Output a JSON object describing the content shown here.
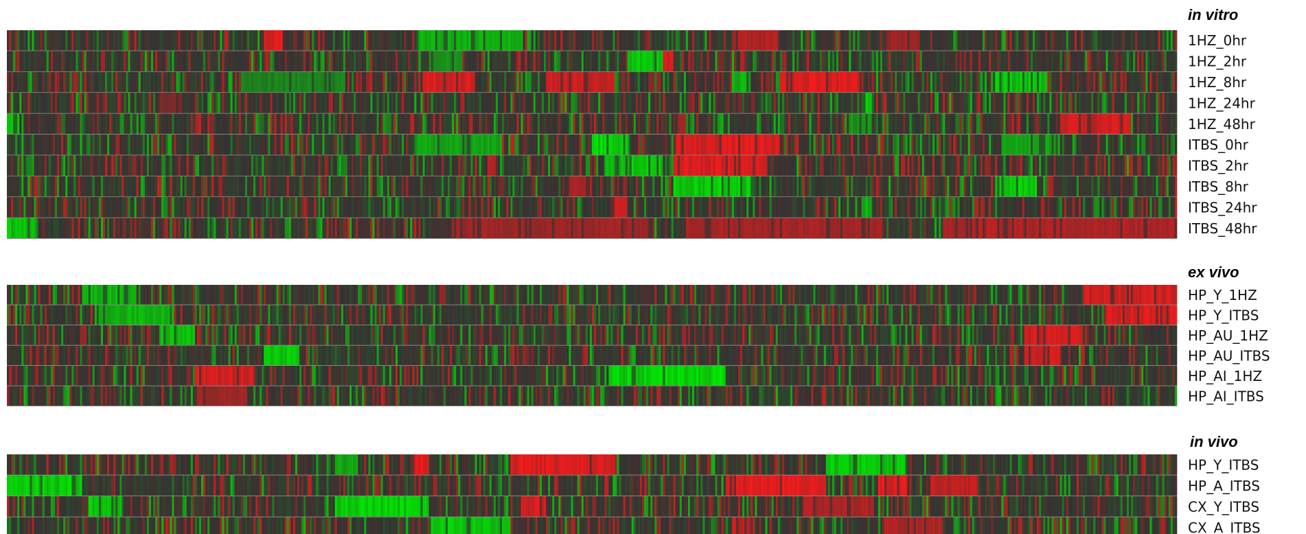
{
  "chart_data": [
    {
      "type": "heatmap",
      "title": "in vitro",
      "rows": [
        "1HZ_0hr",
        "1HZ_2hr",
        "1HZ_8hr",
        "1HZ_24hr",
        "1HZ_48hr",
        "ITBS_0hr",
        "ITBS_2hr",
        "ITBS_8hr",
        "ITBS_24hr",
        "ITBS_48hr"
      ],
      "color_scale": {
        "low": "#00ee00",
        "mid": "#333333",
        "high": "#ff1a1a"
      },
      "value_range": [
        -1,
        1
      ],
      "columns": 560,
      "blocks": [
        {
          "row": 0,
          "from": 0.22,
          "to": 0.235,
          "value": 1
        },
        {
          "row": 0,
          "from": 0.35,
          "to": 0.44,
          "value": -0.8
        },
        {
          "row": 0,
          "from": 0.62,
          "to": 0.66,
          "value": 0.7
        },
        {
          "row": 0,
          "from": 0.75,
          "to": 0.78,
          "value": 0.6
        },
        {
          "row": 1,
          "from": 0.53,
          "to": 0.56,
          "value": -0.9
        },
        {
          "row": 1,
          "from": 0.56,
          "to": 0.57,
          "value": 0.9
        },
        {
          "row": 1,
          "from": 0.36,
          "to": 0.39,
          "value": -0.6
        },
        {
          "row": 2,
          "from": 0.355,
          "to": 0.4,
          "value": 0.95
        },
        {
          "row": 2,
          "from": 0.46,
          "to": 0.52,
          "value": 0.85
        },
        {
          "row": 2,
          "from": 0.62,
          "to": 0.635,
          "value": -0.8
        },
        {
          "row": 2,
          "from": 0.66,
          "to": 0.73,
          "value": 0.95
        },
        {
          "row": 2,
          "from": 0.845,
          "to": 0.89,
          "value": -0.9
        },
        {
          "row": 2,
          "from": 0.2,
          "to": 0.29,
          "value": -0.5
        },
        {
          "row": 3,
          "from": 0.73,
          "to": 0.74,
          "value": -1
        },
        {
          "row": 3,
          "from": 0.13,
          "to": 0.15,
          "value": 0.4
        },
        {
          "row": 4,
          "from": 0.0,
          "to": 0.01,
          "value": -1
        },
        {
          "row": 4,
          "from": 0.9,
          "to": 0.96,
          "value": 0.9
        },
        {
          "row": 4,
          "from": 0.72,
          "to": 0.74,
          "value": -0.6
        },
        {
          "row": 5,
          "from": 0.5,
          "to": 0.53,
          "value": -1
        },
        {
          "row": 5,
          "from": 0.57,
          "to": 0.66,
          "value": 0.95
        },
        {
          "row": 5,
          "from": 0.35,
          "to": 0.42,
          "value": -0.7
        },
        {
          "row": 5,
          "from": 0.85,
          "to": 0.9,
          "value": -0.7
        },
        {
          "row": 6,
          "from": 0.51,
          "to": 0.56,
          "value": -0.9
        },
        {
          "row": 6,
          "from": 0.57,
          "to": 0.65,
          "value": 0.95
        },
        {
          "row": 6,
          "from": 0.41,
          "to": 0.42,
          "value": 0.8
        },
        {
          "row": 7,
          "from": 0.57,
          "to": 0.64,
          "value": -0.95
        },
        {
          "row": 7,
          "from": 0.845,
          "to": 0.88,
          "value": -0.95
        },
        {
          "row": 7,
          "from": 0.48,
          "to": 0.5,
          "value": 0.7
        },
        {
          "row": 8,
          "from": 0.52,
          "to": 0.53,
          "value": 0.9
        },
        {
          "row": 8,
          "from": 0.73,
          "to": 0.74,
          "value": -0.8
        },
        {
          "row": 9,
          "from": 0.0,
          "to": 0.025,
          "value": -0.9
        },
        {
          "row": 9,
          "from": 0.38,
          "to": 0.55,
          "value": 0.6
        },
        {
          "row": 9,
          "from": 0.58,
          "to": 0.75,
          "value": 0.65
        },
        {
          "row": 9,
          "from": 0.8,
          "to": 1.0,
          "value": 0.7
        }
      ]
    },
    {
      "type": "heatmap",
      "title": "ex vivo",
      "rows": [
        "HP_Y_1HZ",
        "HP_Y_ITBS",
        "HP_AU_1HZ",
        "HP_AU_ITBS",
        "HP_AI_1HZ",
        "HP_AI_ITBS"
      ],
      "color_scale": {
        "low": "#00ee00",
        "mid": "#333333",
        "high": "#ff1a1a"
      },
      "value_range": [
        -1,
        1
      ],
      "columns": 560,
      "blocks": [
        {
          "row": 0,
          "from": 0.065,
          "to": 0.11,
          "value": -0.8
        },
        {
          "row": 0,
          "from": 0.92,
          "to": 1.0,
          "value": 0.9
        },
        {
          "row": 1,
          "from": 0.075,
          "to": 0.14,
          "value": -0.8
        },
        {
          "row": 1,
          "from": 0.94,
          "to": 1.0,
          "value": 0.95
        },
        {
          "row": 2,
          "from": 0.13,
          "to": 0.16,
          "value": -0.85
        },
        {
          "row": 2,
          "from": 0.87,
          "to": 0.92,
          "value": 0.9
        },
        {
          "row": 3,
          "from": 0.22,
          "to": 0.25,
          "value": -0.9
        },
        {
          "row": 3,
          "from": 0.87,
          "to": 0.9,
          "value": 0.9
        },
        {
          "row": 4,
          "from": 0.16,
          "to": 0.21,
          "value": 0.9
        },
        {
          "row": 4,
          "from": 0.515,
          "to": 0.615,
          "value": -1
        },
        {
          "row": 5,
          "from": 0.16,
          "to": 0.2,
          "value": 0.6
        }
      ]
    },
    {
      "type": "heatmap",
      "title": "in vivo",
      "rows": [
        "HP_Y_ITBS",
        "HP_A_ITBS",
        "CX_Y_ITBS",
        "CX_A_ITBS"
      ],
      "color_scale": {
        "low": "#00ee00",
        "mid": "#333333",
        "high": "#ff1a1a"
      },
      "value_range": [
        -1,
        1
      ],
      "columns": 560,
      "blocks": [
        {
          "row": 0,
          "from": 0.345,
          "to": 0.36,
          "value": 1
        },
        {
          "row": 0,
          "from": 0.43,
          "to": 0.52,
          "value": 0.95
        },
        {
          "row": 0,
          "from": 0.7,
          "to": 0.77,
          "value": -0.9
        },
        {
          "row": 0,
          "from": 0.28,
          "to": 0.3,
          "value": -0.7
        },
        {
          "row": 1,
          "from": 0.0,
          "to": 0.065,
          "value": -0.95
        },
        {
          "row": 1,
          "from": 0.615,
          "to": 0.7,
          "value": 1
        },
        {
          "row": 1,
          "from": 0.745,
          "to": 0.77,
          "value": 1
        },
        {
          "row": 1,
          "from": 0.79,
          "to": 0.83,
          "value": 0.8
        },
        {
          "row": 2,
          "from": 0.07,
          "to": 0.1,
          "value": -0.9
        },
        {
          "row": 2,
          "from": 0.28,
          "to": 0.36,
          "value": -0.95
        },
        {
          "row": 2,
          "from": 0.44,
          "to": 0.46,
          "value": 0.9
        },
        {
          "row": 2,
          "from": 0.68,
          "to": 0.74,
          "value": 0.7
        },
        {
          "row": 3,
          "from": 0.36,
          "to": 0.43,
          "value": -0.9
        },
        {
          "row": 3,
          "from": 0.62,
          "to": 0.64,
          "value": 0.8
        },
        {
          "row": 3,
          "from": 0.75,
          "to": 0.8,
          "value": 0.7
        }
      ]
    }
  ]
}
